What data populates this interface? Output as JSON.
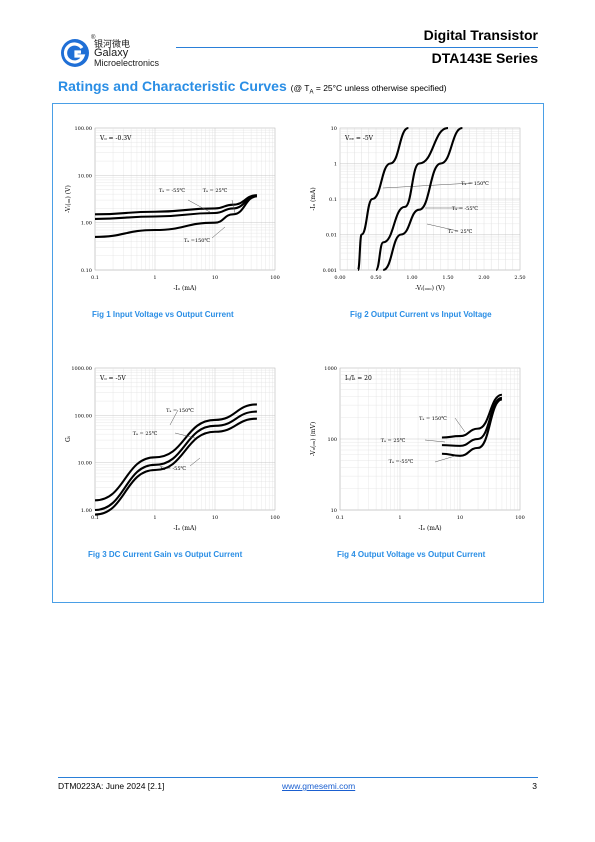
{
  "header": {
    "company_cn": "银河微电",
    "company_name": "Galaxy",
    "company_sub": "Microelectronics",
    "registered": "®",
    "title_line1": "Digital Transistor",
    "title_line2": "DTA143E Series"
  },
  "section": {
    "title": "Ratings and Characteristic Curves",
    "note": "(@ Tₐ = 25°C unless otherwise specified)"
  },
  "colors": {
    "accent": "#2a8ee5",
    "rule": "#2a7fd8"
  },
  "figures": {
    "fig1": "Fig 1    Input Voltage vs Output Current",
    "fig2": "Fig 2    Output Current vs Input Voltage",
    "fig3": "Fig 3    DC Current Gain vs Output Current",
    "fig4": "Fig 4    Output Voltage vs Output Current"
  },
  "chart_data": [
    {
      "id": "fig1",
      "type": "line",
      "xscale": "log",
      "yscale": "log",
      "xlim": [
        0.1,
        100
      ],
      "ylim": [
        0.1,
        100
      ],
      "xticks": [
        "0.1",
        "1",
        "10",
        "100"
      ],
      "yticks": [
        "0.10",
        "1.00",
        "10.00",
        "100.00"
      ],
      "xlabel": "-Iₒ (mA)",
      "ylabel": "-Vᵢ(ₒₙ) (V)",
      "condition": "Vₒ = -0.3V",
      "series": [
        {
          "name": "Tₐ = -55℃",
          "x": [
            0.1,
            1,
            10,
            20,
            50
          ],
          "y": [
            1.5,
            1.7,
            2.0,
            2.4,
            3.8
          ]
        },
        {
          "name": "Tₐ = 25℃",
          "x": [
            0.1,
            1,
            10,
            20,
            50
          ],
          "y": [
            1.2,
            1.35,
            1.6,
            2.0,
            3.7
          ]
        },
        {
          "name": "Tₐ =150℃",
          "x": [
            0.1,
            1,
            10,
            20,
            50
          ],
          "y": [
            0.5,
            0.7,
            1.0,
            1.5,
            3.6
          ]
        }
      ]
    },
    {
      "id": "fig2",
      "type": "line",
      "xscale": "linear",
      "yscale": "log",
      "xlim": [
        0,
        2.5
      ],
      "ylim": [
        0.001,
        10
      ],
      "xticks": [
        "0.00",
        "0.50",
        "1.00",
        "1.50",
        "2.00",
        "2.50"
      ],
      "yticks": [
        "0.001",
        "0.01",
        "0.1",
        "1",
        "10"
      ],
      "xlabel": "-Vᵢ(ₒₒₒ) (V)",
      "ylabel": "-Iₒ (mA)",
      "condition": "Vₑₑ = -5V",
      "series": [
        {
          "name": "Tₐ = 150℃",
          "x": [
            0.25,
            0.3,
            0.45,
            0.7,
            0.95
          ],
          "y": [
            0.001,
            0.01,
            0.1,
            1,
            10
          ]
        },
        {
          "name": "Tₐ = -55℃",
          "x": [
            0.6,
            0.85,
            1.1,
            1.4,
            1.7
          ],
          "y": [
            0.001,
            0.01,
            0.05,
            1,
            10
          ]
        },
        {
          "name": "Tₐ = 25℃",
          "x": [
            0.5,
            0.6,
            0.9,
            1.1,
            1.5
          ],
          "y": [
            0.001,
            0.006,
            0.06,
            1,
            10
          ]
        }
      ]
    },
    {
      "id": "fig3",
      "type": "line",
      "xscale": "log",
      "yscale": "log",
      "xlim": [
        0.1,
        100
      ],
      "ylim": [
        1,
        1000
      ],
      "xticks": [
        "0.1",
        "1",
        "10",
        "100"
      ],
      "yticks": [
        "1.00",
        "10.00",
        "100.00",
        "1000.00"
      ],
      "xlabel": "-Iₒ (mA)",
      "ylabel": "Gᵢ",
      "condition": "Vₒ = -5V",
      "series": [
        {
          "name": "Tₐ = 150℃",
          "x": [
            0.1,
            1,
            10,
            50
          ],
          "y": [
            1.6,
            13,
            80,
            170
          ]
        },
        {
          "name": "Tₐ = 25℃",
          "x": [
            0.1,
            1,
            10,
            50
          ],
          "y": [
            1.0,
            9,
            60,
            120
          ]
        },
        {
          "name": "Tₐ = -55℃",
          "x": [
            0.1,
            1,
            10,
            50
          ],
          "y": [
            0.8,
            7,
            45,
            85
          ]
        }
      ]
    },
    {
      "id": "fig4",
      "type": "line",
      "xscale": "log",
      "yscale": "log",
      "xlim": [
        0.1,
        100
      ],
      "ylim": [
        10,
        1000
      ],
      "xticks": [
        "0.1",
        "1",
        "10",
        "100"
      ],
      "yticks": [
        "10",
        "100",
        "1000"
      ],
      "xlabel": "-Iₒ (mA)",
      "ylabel": "-Vₒ(ₒₙ) (mV)",
      "condition": "Iₒ/Iᵢ = 20",
      "series": [
        {
          "name": "Tₐ = 150℃",
          "x": [
            5,
            10,
            20,
            50
          ],
          "y": [
            105,
            110,
            140,
            420
          ]
        },
        {
          "name": "Tₐ = 25℃",
          "x": [
            5,
            10,
            20,
            50
          ],
          "y": [
            82,
            80,
            100,
            380
          ]
        },
        {
          "name": "Tₐ =-55℃",
          "x": [
            5,
            10,
            20,
            50
          ],
          "y": [
            62,
            58,
            75,
            360
          ]
        }
      ]
    }
  ],
  "footer": {
    "doc": "DTM0223A: June 2024 [2.1]",
    "url": "www.gmesemi.com",
    "page": "3"
  }
}
